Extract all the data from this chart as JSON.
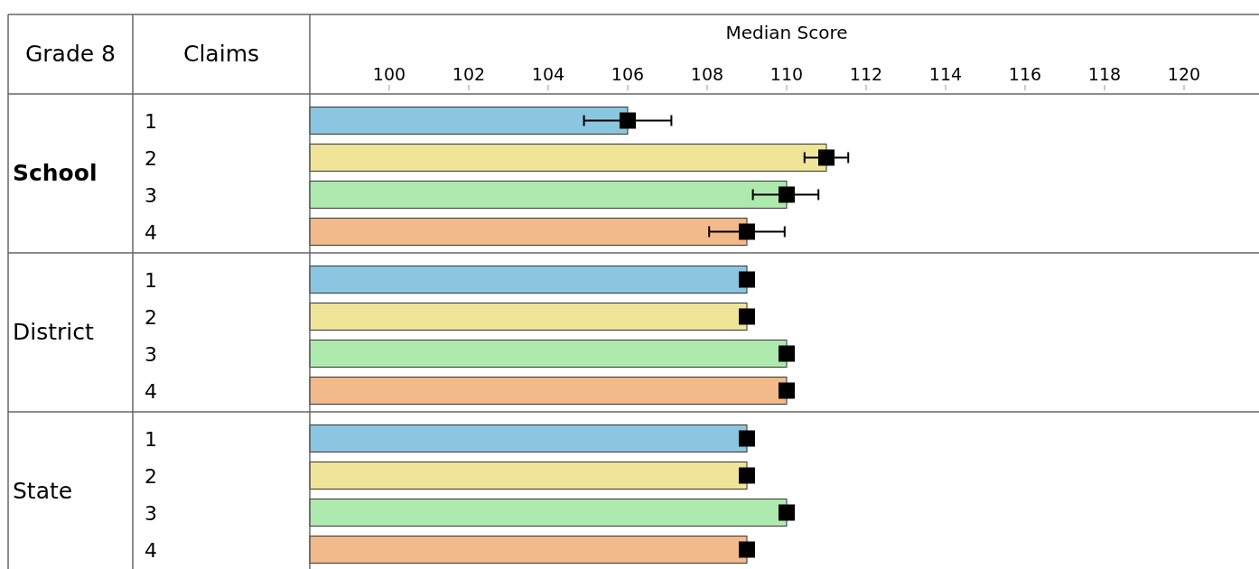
{
  "chart_data": {
    "type": "bar",
    "orientation": "horizontal",
    "xlabel": "Median Score",
    "annotations": [
      "Grade 8",
      "Claims",
      "School",
      "District",
      "State"
    ],
    "categories": [
      "1",
      "2",
      "3",
      "4",
      "1",
      "2",
      "3",
      "4",
      "1",
      "2",
      "3",
      "4"
    ],
    "xlim": [
      98,
      122
    ],
    "xticks": [
      100,
      102,
      104,
      106,
      108,
      110,
      112,
      114,
      116,
      118,
      120
    ],
    "series": [
      {
        "colors": [
          "#8ac6e0",
          "#f0e498",
          "#aeeaae",
          "#f2b98a",
          "#8ac6e0",
          "#f0e498",
          "#aeeaae",
          "#f2b98a",
          "#8ac6e0",
          "#f0e498",
          "#aeeaae",
          "#f2b98a"
        ],
        "values": [
          106,
          111,
          110,
          109,
          109,
          109,
          110,
          110,
          109,
          109,
          110,
          109
        ]
      },
      {
        "type": "scatter",
        "color": "#000000",
        "marker": "square",
        "values": [
          106,
          111,
          110,
          109,
          109,
          109,
          110,
          110,
          109,
          109,
          110,
          109
        ],
        "errors": [
          [
            104.9,
            107.1
          ],
          [
            110.45,
            111.55
          ],
          [
            109.15,
            110.8
          ],
          [
            108.05,
            109.95
          ],
          null,
          null,
          null,
          null,
          null,
          null,
          null,
          null
        ]
      }
    ]
  }
}
